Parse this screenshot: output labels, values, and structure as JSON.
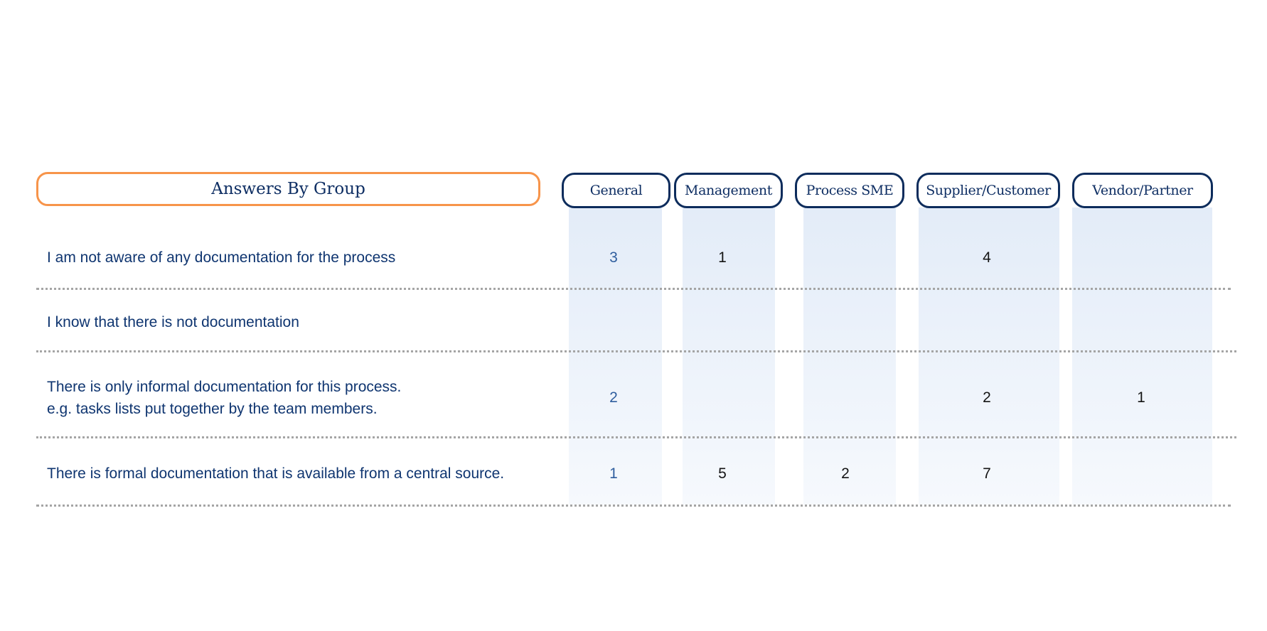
{
  "title": "Answers By Group",
  "columns": [
    {
      "label": "General"
    },
    {
      "label": "Management"
    },
    {
      "label": "Process SME"
    },
    {
      "label": "Supplier/Customer"
    },
    {
      "label": "Vendor/Partner"
    }
  ],
  "rows": [
    {
      "label_lines": [
        "I am not aware of any documentation for the process"
      ],
      "cells": [
        "3",
        "1",
        "",
        "4",
        ""
      ]
    },
    {
      "label_lines": [
        "I know that there is not documentation"
      ],
      "cells": [
        "",
        "",
        "",
        "",
        ""
      ]
    },
    {
      "label_lines": [
        "There is only informal documentation for this process.",
        "e.g. tasks lists put together by the team members."
      ],
      "cells": [
        "2",
        "",
        "",
        "2",
        "1"
      ]
    },
    {
      "label_lines": [
        "There is formal documentation that is available from a central source."
      ],
      "cells": [
        "1",
        "5",
        "2",
        "7",
        ""
      ]
    }
  ],
  "colors": {
    "title_border": "#f7944a",
    "header_border": "#0d2c5c",
    "text": "#0f3570",
    "general_value": "#2f5e9e",
    "other_value": "#141414",
    "column_shade_top": "#e3ecf8",
    "column_shade_bottom": "#f6f9fd",
    "divider": "#a5a5a5"
  }
}
